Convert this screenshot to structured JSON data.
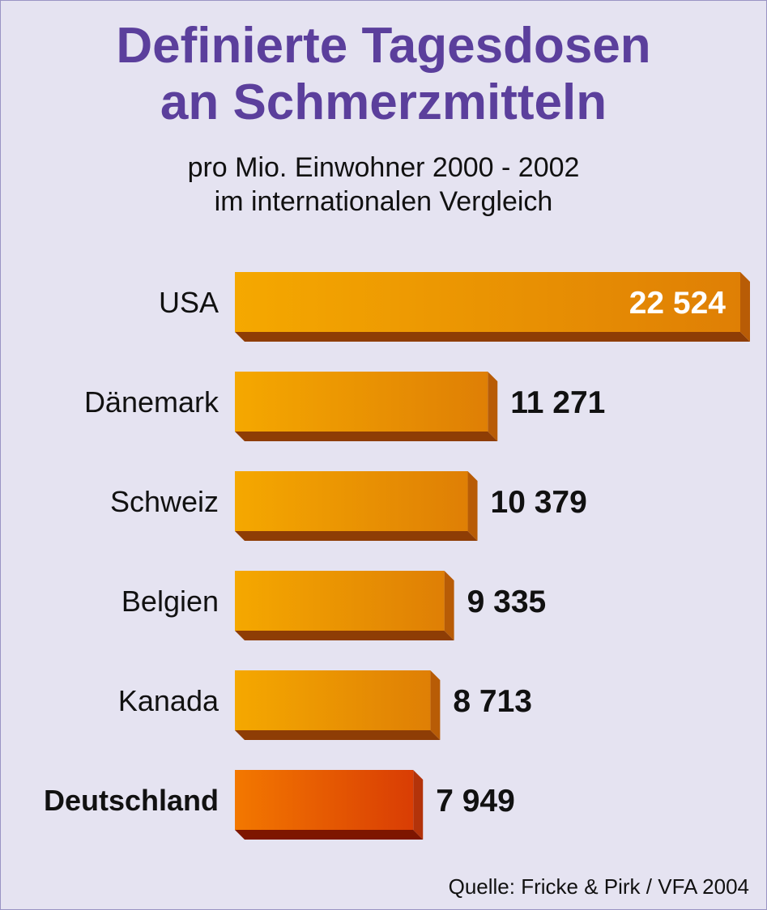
{
  "title_line1": "Definierte Tagesdosen",
  "title_line2": "an Schmerzmitteln",
  "subtitle_line1": "pro Mio. Einwohner 2000 - 2002",
  "subtitle_line2": "im internationalen Vergleich",
  "source": "Quelle: Fricke & Pirk / VFA 2004",
  "colors": {
    "bar_front_light": "#f5a800",
    "bar_front_dark": "#df7f05",
    "bar_side": "#b85c06",
    "bar_bottom": "#8e3d05",
    "highlight_front_light": "#f37800",
    "highlight_front_dark": "#d93d04",
    "highlight_side": "#b3330a",
    "highlight_bottom": "#7e1600",
    "title": "#5b3f9c",
    "background": "#e5e3f1"
  },
  "chart_data": {
    "type": "bar",
    "orientation": "horizontal",
    "title": "Definierte Tagesdosen an Schmerzmitteln",
    "subtitle": "pro Mio. Einwohner 2000 - 2002 im internationalen Vergleich",
    "categories": [
      "USA",
      "Dänemark",
      "Schweiz",
      "Belgien",
      "Kanada",
      "Deutschland"
    ],
    "values": [
      22524,
      11271,
      10379,
      9335,
      8713,
      7949
    ],
    "value_labels": [
      "22 524",
      "11 271",
      "10 379",
      "9 335",
      "8 713",
      "7 949"
    ],
    "highlight": "Deutschland",
    "axes_visible": false,
    "grid": false,
    "legend": "none"
  }
}
